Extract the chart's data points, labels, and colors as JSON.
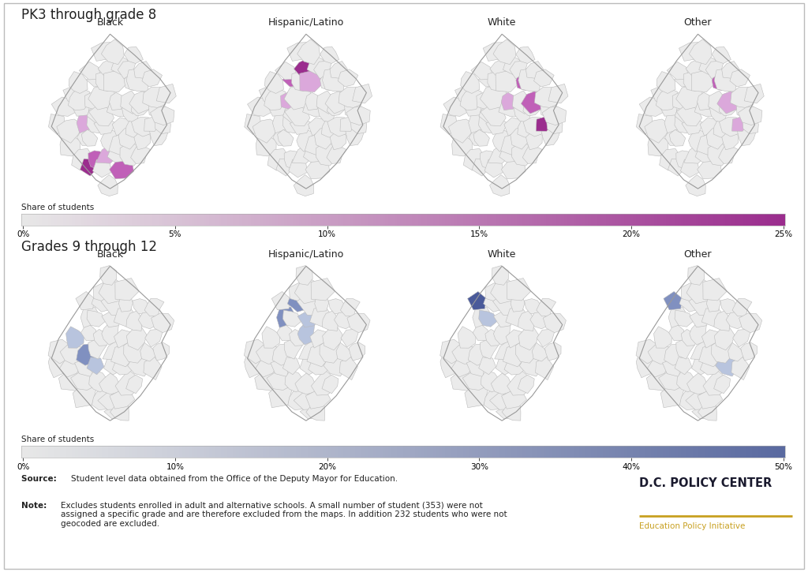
{
  "title_top": "PK3 through grade 8",
  "title_bottom": "Grades 9 through 12",
  "categories": [
    "Black",
    "Hispanic/Latino",
    "White",
    "Other"
  ],
  "colorbar1": {
    "label": "Share of students",
    "ticks": [
      "0%",
      "5%",
      "10%",
      "15%",
      "20%",
      "25%"
    ],
    "color_start": "#e8e8e8",
    "color_end": "#9b2d8e"
  },
  "colorbar2": {
    "label": "Share of students",
    "ticks": [
      "0%",
      "10%",
      "20%",
      "30%",
      "40%",
      "50%"
    ],
    "color_start": "#e8e8e8",
    "color_end": "#5a6aa0"
  },
  "source_text": "Student level data obtained from the Office of the Deputy Mayor for Education.",
  "note_text": "Excludes students enrolled in adult and alternative schools. A small number of student (353) were not\nassigned a specific grade and are therefore excluded from the maps. In addition 232 students who were not\ngeocoded are excluded.",
  "logo_text": "D.C. POLICY CENTER",
  "logo_subtext": "Education Policy Initiative",
  "logo_line_color": "#c8a020",
  "background_color": "#ffffff",
  "border_color": "#cccccc",
  "map_fill_light": "#ebebeb",
  "map_border": "#bbbbbb",
  "purple_dark": "#9b2d8e",
  "purple_mid": "#c060b8",
  "purple_light": "#dba8db",
  "blue_dark": "#4a5a9a",
  "blue_mid": "#8090c0",
  "blue_light": "#b8c4de",
  "text_color": "#222222",
  "title_fontsize": 12,
  "cat_fontsize": 9,
  "small_fontsize": 7.5
}
